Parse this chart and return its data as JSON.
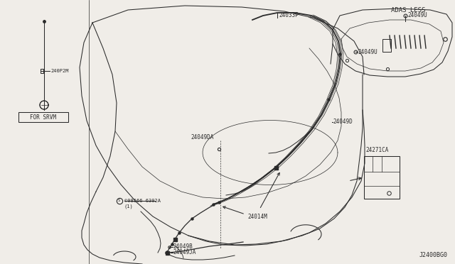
{
  "bg_color": "#f0ede8",
  "c": "#2a2a2a",
  "lw": 0.75,
  "labels": {
    "for_srvm": "FOR SRVM",
    "240p2m": "240P2M",
    "24033p": "24033P",
    "24049u_top": "24049U",
    "24049u_mid": "24049U",
    "24049d": "24049D",
    "24049da": "24049DA",
    "24014m": "24014M",
    "24049b": "24049B",
    "24049ja": "24049JA",
    "08566": "©08566-6302A",
    "c1": "(1)",
    "24271ca": "24271CA",
    "adas_less": "ADAS LESS",
    "j2400bg0": "J2400BG0"
  }
}
